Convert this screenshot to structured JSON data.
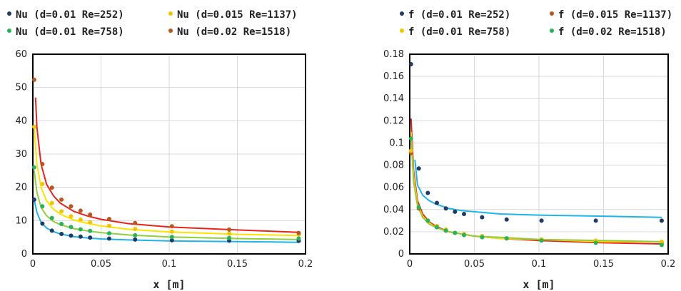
{
  "chart_data": [
    {
      "type": "scatter",
      "xlabel": "x [m]",
      "ylabel": "",
      "xlim": [
        0,
        0.2
      ],
      "ylim": [
        0,
        60
      ],
      "xticks": [
        0,
        0.05,
        0.1,
        0.15,
        0.2
      ],
      "xtick_labels": [
        "0",
        "0.05",
        "0.1",
        "0.15",
        "0.2"
      ],
      "yticks": [
        0,
        10,
        20,
        30,
        40,
        50,
        60
      ],
      "ytick_labels": [
        "0",
        "10",
        "20",
        "30",
        "40",
        "50",
        "60"
      ],
      "grid": true,
      "legend_position": "top",
      "series": [
        {
          "name": "Nu (d=0.01 Re=252)",
          "color": "#1f3a66",
          "line_color": "#1eb4ea",
          "points": [
            [
              0.001,
              16.3
            ],
            [
              0.007,
              9.1
            ],
            [
              0.014,
              7.0
            ],
            [
              0.021,
              6.0
            ],
            [
              0.028,
              5.5
            ],
            [
              0.035,
              5.2
            ],
            [
              0.042,
              4.9
            ],
            [
              0.056,
              4.6
            ],
            [
              0.075,
              4.3
            ],
            [
              0.102,
              4.1
            ],
            [
              0.144,
              4.0
            ],
            [
              0.195,
              3.9
            ]
          ],
          "line": [
            [
              0.001,
              16.3
            ],
            [
              0.003,
              12.5
            ],
            [
              0.006,
              9.5
            ],
            [
              0.01,
              7.8
            ],
            [
              0.015,
              6.7
            ],
            [
              0.02,
              6.0
            ],
            [
              0.03,
              5.2
            ],
            [
              0.04,
              4.8
            ],
            [
              0.05,
              4.5
            ],
            [
              0.07,
              4.2
            ],
            [
              0.1,
              3.9
            ],
            [
              0.15,
              3.7
            ],
            [
              0.195,
              3.5
            ]
          ]
        },
        {
          "name": "Nu (d=0.015 Re=1137)",
          "color": "#f2c500",
          "line_color": "#ffe100",
          "points": [
            [
              0.001,
              38.2
            ],
            [
              0.007,
              21.0
            ],
            [
              0.014,
              15.3
            ],
            [
              0.021,
              12.8
            ],
            [
              0.028,
              11.3
            ],
            [
              0.035,
              10.3
            ],
            [
              0.042,
              9.5
            ],
            [
              0.056,
              8.4
            ],
            [
              0.075,
              7.5
            ],
            [
              0.102,
              6.7
            ],
            [
              0.144,
              6.1
            ],
            [
              0.195,
              5.8
            ]
          ],
          "line": [
            [
              0.001,
              38.0
            ],
            [
              0.003,
              27.0
            ],
            [
              0.006,
              20.0
            ],
            [
              0.01,
              16.0
            ],
            [
              0.015,
              13.5
            ],
            [
              0.02,
              12.0
            ],
            [
              0.03,
              10.2
            ],
            [
              0.04,
              9.2
            ],
            [
              0.05,
              8.4
            ],
            [
              0.07,
              7.4
            ],
            [
              0.1,
              6.6
            ],
            [
              0.15,
              5.9
            ],
            [
              0.195,
              5.5
            ]
          ]
        },
        {
          "name": "Nu (d=0.01 Re=758)",
          "color": "#27b35a",
          "line_color": "#8fce3c",
          "points": [
            [
              0.001,
              26.0
            ],
            [
              0.007,
              14.3
            ],
            [
              0.014,
              10.8
            ],
            [
              0.021,
              9.0
            ],
            [
              0.028,
              8.1
            ],
            [
              0.035,
              7.4
            ],
            [
              0.042,
              6.9
            ],
            [
              0.056,
              6.2
            ],
            [
              0.075,
              5.6
            ],
            [
              0.102,
              5.1
            ],
            [
              0.144,
              4.8
            ],
            [
              0.195,
              4.6
            ]
          ],
          "line": [
            [
              0.001,
              25.0
            ],
            [
              0.003,
              18.5
            ],
            [
              0.006,
              14.0
            ],
            [
              0.01,
              11.5
            ],
            [
              0.015,
              9.8
            ],
            [
              0.02,
              8.8
            ],
            [
              0.03,
              7.6
            ],
            [
              0.04,
              6.9
            ],
            [
              0.05,
              6.4
            ],
            [
              0.07,
              5.7
            ],
            [
              0.1,
              5.1
            ],
            [
              0.15,
              4.6
            ],
            [
              0.195,
              4.3
            ]
          ]
        },
        {
          "name": "Nu (d=0.02 Re=1518)",
          "color": "#b8571c",
          "line_color": "#e8231c",
          "points": [
            [
              0.001,
              52.3
            ],
            [
              0.007,
              27.0
            ],
            [
              0.014,
              19.9
            ],
            [
              0.021,
              16.3
            ],
            [
              0.028,
              14.3
            ],
            [
              0.035,
              13.0
            ],
            [
              0.042,
              11.8
            ],
            [
              0.056,
              10.5
            ],
            [
              0.075,
              9.3
            ],
            [
              0.102,
              8.3
            ],
            [
              0.144,
              7.3
            ],
            [
              0.195,
              6.3
            ]
          ],
          "line": [
            [
              0.002,
              47.0
            ],
            [
              0.003,
              38.0
            ],
            [
              0.006,
              27.0
            ],
            [
              0.01,
              21.0
            ],
            [
              0.015,
              17.5
            ],
            [
              0.02,
              15.3
            ],
            [
              0.03,
              12.8
            ],
            [
              0.04,
              11.4
            ],
            [
              0.05,
              10.4
            ],
            [
              0.07,
              9.1
            ],
            [
              0.1,
              8.1
            ],
            [
              0.15,
              7.2
            ],
            [
              0.195,
              6.5
            ]
          ]
        }
      ]
    },
    {
      "type": "scatter",
      "xlabel": "x [m]",
      "ylabel": "",
      "xlim": [
        0,
        0.2
      ],
      "ylim": [
        0,
        0.18
      ],
      "xticks": [
        0,
        0.05,
        0.1,
        0.15,
        0.2
      ],
      "xtick_labels": [
        "0",
        "0.05",
        "0.1",
        "0.15",
        "0.2"
      ],
      "yticks": [
        0,
        0.02,
        0.04,
        0.06,
        0.08,
        0.1,
        0.12,
        0.14,
        0.16,
        0.18
      ],
      "ytick_labels": [
        "0",
        "0.02",
        "0.04",
        "0.06",
        "0.08",
        "0.1",
        "0.12",
        "0.14",
        "0.16",
        "0.18"
      ],
      "grid": true,
      "legend_position": "top",
      "series": [
        {
          "name": "f (d=0.01 Re=252)",
          "color": "#1f3a66",
          "line_color": "#1eb4ea",
          "points": [
            [
              0.001,
              0.171
            ],
            [
              0.007,
              0.077
            ],
            [
              0.014,
              0.055
            ],
            [
              0.021,
              0.046
            ],
            [
              0.028,
              0.041
            ],
            [
              0.035,
              0.038
            ],
            [
              0.042,
              0.036
            ],
            [
              0.056,
              0.033
            ],
            [
              0.075,
              0.031
            ],
            [
              0.102,
              0.03
            ],
            [
              0.144,
              0.03
            ],
            [
              0.195,
              0.03
            ]
          ],
          "line": [
            [
              0.004,
              0.085
            ],
            [
              0.006,
              0.062
            ],
            [
              0.01,
              0.053
            ],
            [
              0.015,
              0.048
            ],
            [
              0.02,
              0.045
            ],
            [
              0.03,
              0.041
            ],
            [
              0.04,
              0.039
            ],
            [
              0.05,
              0.038
            ],
            [
              0.07,
              0.036
            ],
            [
              0.1,
              0.035
            ],
            [
              0.15,
              0.034
            ],
            [
              0.195,
              0.033
            ]
          ]
        },
        {
          "name": "f (d=0.015 Re=1137)",
          "color": "#b8571c",
          "line_color": "#e8231c",
          "points": [
            [
              0.001,
              0.091
            ],
            [
              0.007,
              0.041
            ],
            [
              0.014,
              0.03
            ],
            [
              0.021,
              0.025
            ],
            [
              0.028,
              0.021
            ],
            [
              0.035,
              0.019
            ],
            [
              0.042,
              0.017
            ],
            [
              0.056,
              0.016
            ],
            [
              0.075,
              0.014
            ],
            [
              0.102,
              0.013
            ],
            [
              0.144,
              0.011
            ],
            [
              0.195,
              0.01
            ]
          ],
          "line": [
            [
              0.001,
              0.122
            ],
            [
              0.003,
              0.075
            ],
            [
              0.006,
              0.048
            ],
            [
              0.01,
              0.036
            ],
            [
              0.015,
              0.029
            ],
            [
              0.02,
              0.025
            ],
            [
              0.03,
              0.02
            ],
            [
              0.04,
              0.018
            ],
            [
              0.05,
              0.016
            ],
            [
              0.07,
              0.014
            ],
            [
              0.1,
              0.012
            ],
            [
              0.15,
              0.01
            ],
            [
              0.195,
              0.009
            ]
          ]
        },
        {
          "name": "f (d=0.01 Re=758)",
          "color": "#f2c500",
          "line_color": "#ffe100",
          "points": [
            [
              0.001,
              0.093
            ],
            [
              0.007,
              0.042
            ],
            [
              0.014,
              0.03
            ],
            [
              0.021,
              0.025
            ],
            [
              0.028,
              0.022
            ],
            [
              0.035,
              0.019
            ],
            [
              0.042,
              0.018
            ],
            [
              0.056,
              0.016
            ],
            [
              0.075,
              0.014
            ],
            [
              0.102,
              0.013
            ],
            [
              0.144,
              0.012
            ],
            [
              0.195,
              0.011
            ]
          ],
          "line": [
            [
              0.001,
              0.11
            ],
            [
              0.003,
              0.07
            ],
            [
              0.006,
              0.045
            ],
            [
              0.01,
              0.034
            ],
            [
              0.015,
              0.028
            ],
            [
              0.02,
              0.024
            ],
            [
              0.03,
              0.02
            ],
            [
              0.04,
              0.018
            ],
            [
              0.05,
              0.016
            ],
            [
              0.07,
              0.014
            ],
            [
              0.1,
              0.013
            ],
            [
              0.15,
              0.011
            ],
            [
              0.195,
              0.011
            ]
          ]
        },
        {
          "name": "f (d=0.02 Re=1518)",
          "color": "#27b35a",
          "line_color": "#8fce3c",
          "points": [
            [
              0.001,
              0.104
            ],
            [
              0.007,
              0.042
            ],
            [
              0.014,
              0.03
            ],
            [
              0.021,
              0.024
            ],
            [
              0.028,
              0.021
            ],
            [
              0.035,
              0.019
            ],
            [
              0.042,
              0.017
            ],
            [
              0.056,
              0.015
            ],
            [
              0.075,
              0.014
            ],
            [
              0.102,
              0.012
            ],
            [
              0.144,
              0.01
            ],
            [
              0.195,
              0.008
            ]
          ],
          "line": [
            [
              0.001,
              0.105
            ],
            [
              0.003,
              0.065
            ],
            [
              0.006,
              0.043
            ],
            [
              0.01,
              0.033
            ],
            [
              0.015,
              0.027
            ],
            [
              0.02,
              0.024
            ],
            [
              0.03,
              0.02
            ],
            [
              0.04,
              0.018
            ],
            [
              0.05,
              0.016
            ],
            [
              0.07,
              0.015
            ],
            [
              0.1,
              0.013
            ],
            [
              0.15,
              0.012
            ],
            [
              0.195,
              0.011
            ]
          ]
        }
      ]
    }
  ],
  "legends": [
    {
      "items": [
        {
          "label": "Nu (d=0.01 Re=252)",
          "color": "#1f3a66"
        },
        {
          "label": "Nu (d=0.015 Re=1137)",
          "color": "#f2c500"
        },
        {
          "label": "Nu (d=0.01 Re=758)",
          "color": "#27b35a"
        },
        {
          "label": "Nu (d=0.02 Re=1518)",
          "color": "#b8571c"
        }
      ]
    },
    {
      "items": [
        {
          "label": "f (d=0.01 Re=252)",
          "color": "#1f3a66"
        },
        {
          "label": "f (d=0.015 Re=1137)",
          "color": "#b8571c"
        },
        {
          "label": "f (d=0.01 Re=758)",
          "color": "#f2c500"
        },
        {
          "label": "f (d=0.02 Re=1518)",
          "color": "#27b35a"
        }
      ]
    }
  ]
}
